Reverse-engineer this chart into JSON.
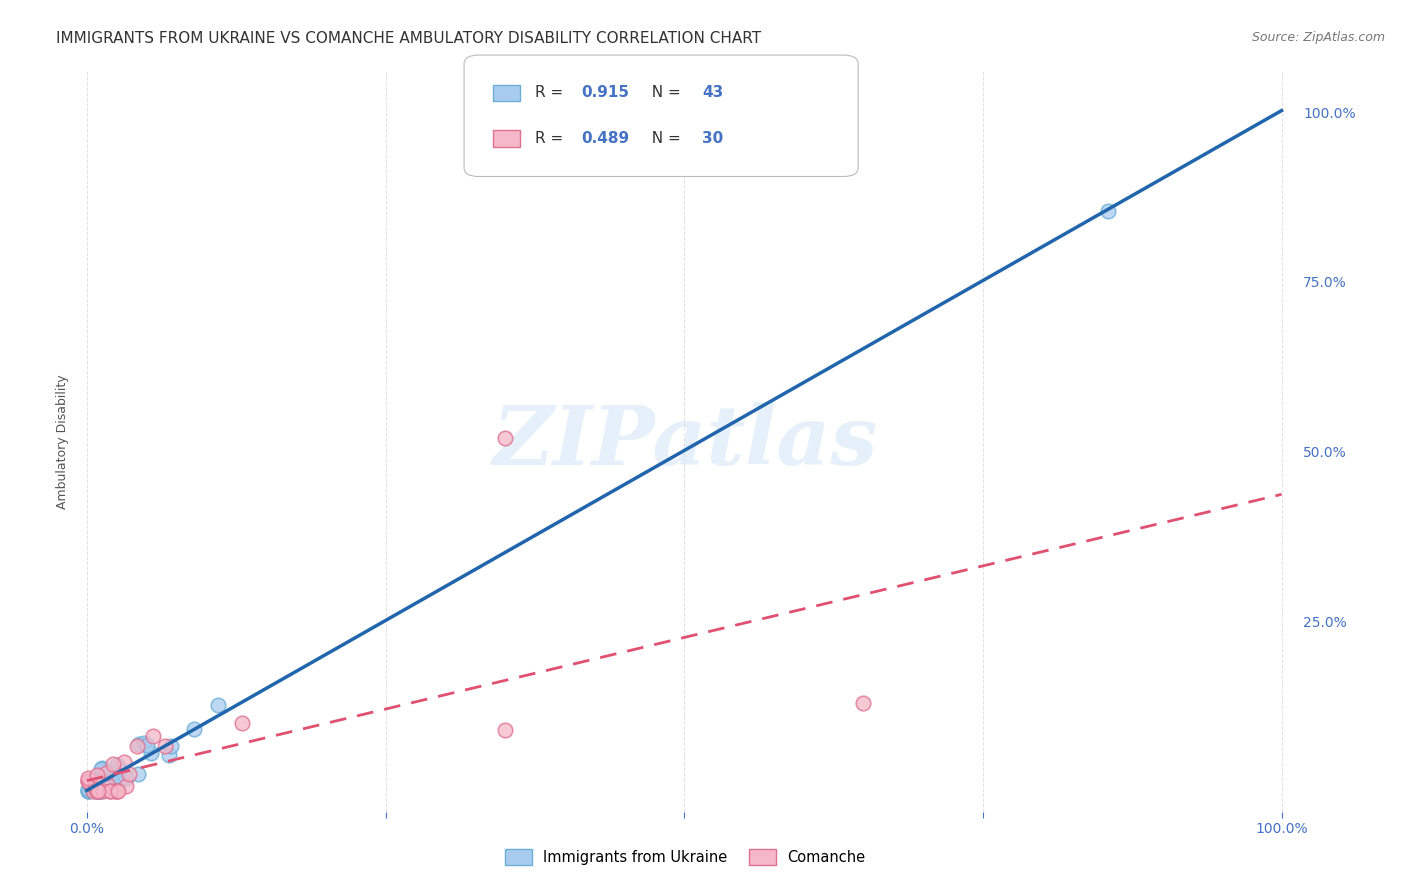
{
  "title": "IMMIGRANTS FROM UKRAINE VS COMANCHE AMBULATORY DISABILITY CORRELATION CHART",
  "source": "Source: ZipAtlas.com",
  "ylabel": "Ambulatory Disability",
  "ytick_labels": [
    "100.0%",
    "75.0%",
    "50.0%",
    "25.0%"
  ],
  "ytick_positions": [
    1.0,
    0.75,
    0.5,
    0.25
  ],
  "xtick_left_label": "0.0%",
  "xtick_right_label": "100.0%",
  "watermark": "ZIPatlas",
  "blue_scatter_color_face": "#A8CCF0",
  "blue_scatter_color_edge": "#6BAED6",
  "pink_scatter_color_face": "#F5B8C8",
  "pink_scatter_color_edge": "#E07090",
  "blue_line_color": "#2166AC",
  "pink_line_color": "#E05070",
  "tick_color": "#4472C4",
  "grid_color": "#DDDDDD",
  "title_fontsize": 11,
  "axis_label_fontsize": 9,
  "tick_fontsize": 10,
  "source_fontsize": 9,
  "legend_R_color": "#4472C4",
  "legend_N_color": "#4472C4",
  "legend_text_color": "#333333",
  "blue_R": "0.915",
  "blue_N": "43",
  "pink_R": "0.489",
  "pink_N": "30",
  "blue_legend_label": "Immigrants from Ukraine",
  "pink_legend_label": "Comanche",
  "background_color": "#FFFFFF"
}
